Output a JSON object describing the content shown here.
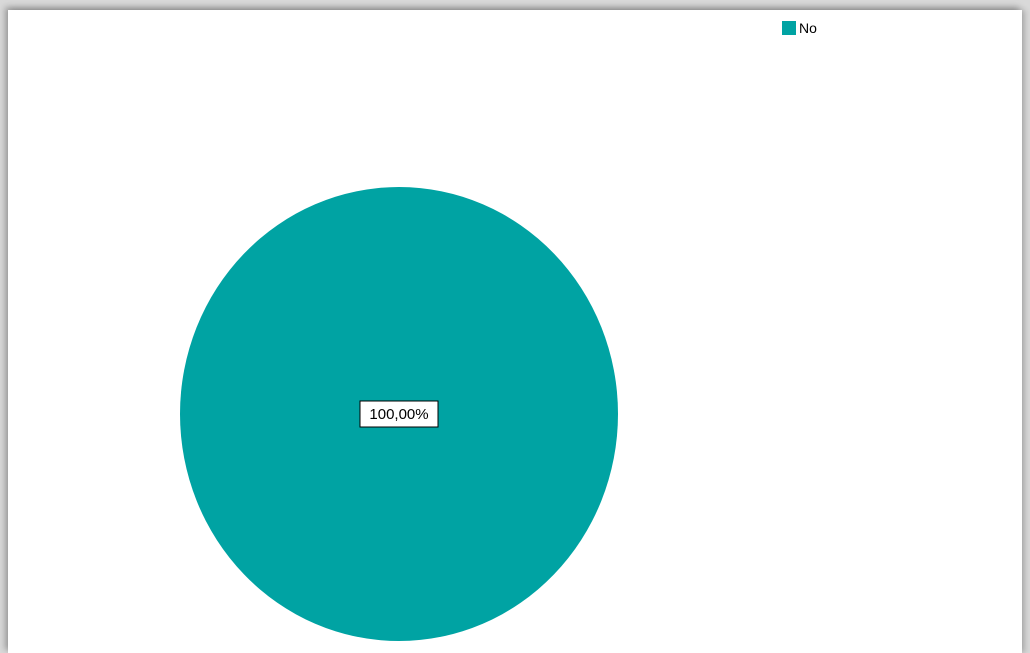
{
  "chart_data": {
    "type": "pie",
    "title": "",
    "legend_position": "top-right",
    "slices": [
      {
        "label": "No",
        "value": 100.0,
        "data_label": "100,00%",
        "color": "#00a3a3"
      }
    ]
  }
}
